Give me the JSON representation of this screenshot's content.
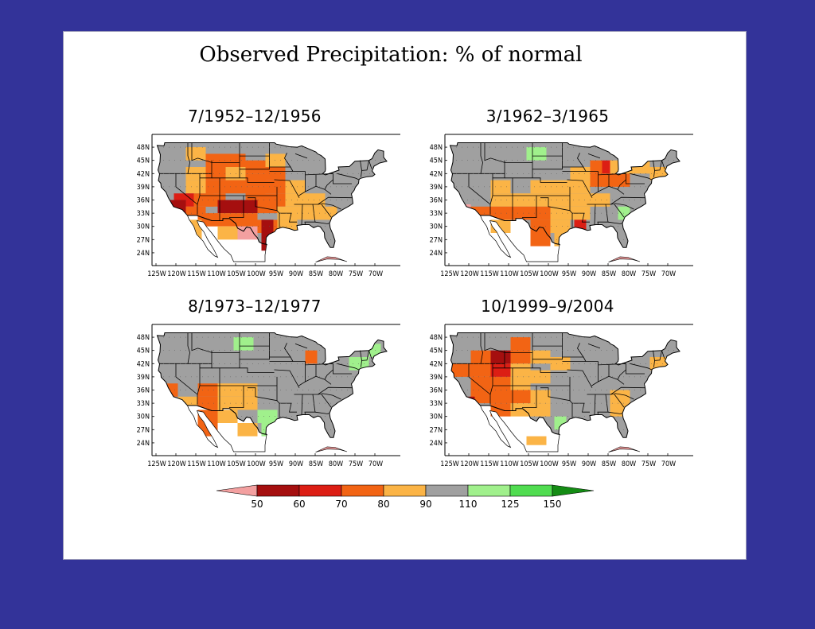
{
  "title": "Observed Precipitation: % of normal",
  "colors": {
    "background": "#333399",
    "land_gray": "#a0a0a0",
    "lt50": "#f3a0a0",
    "c50_60": "#a50f0f",
    "c60_70": "#dc1e14",
    "c70_80": "#f26414",
    "c80_90": "#fbb446",
    "c90_110": "#a0a0a0",
    "c110_125": "#a0f08c",
    "c125_150": "#50dc50",
    "gt150": "#148c14"
  },
  "lat_labels": [
    "48N",
    "45N",
    "42N",
    "39N",
    "36N",
    "33N",
    "30N",
    "27N",
    "24N"
  ],
  "lon_labels": [
    "125W",
    "120W",
    "115W",
    "110W",
    "105W",
    "100W",
    "95W",
    "90W",
    "85W",
    "80W",
    "75W",
    "70W"
  ],
  "panels": [
    {
      "title": "7/1952–12/1956",
      "cells": [
        {
          "lat": 46.5,
          "lon": -115,
          "w": 5,
          "h": 3,
          "c": "c80_90"
        },
        {
          "lat": 45,
          "lon": -110,
          "w": 5,
          "h": 3,
          "c": "c70_80"
        },
        {
          "lat": 45,
          "lon": -105,
          "w": 5,
          "h": 3,
          "c": "c70_80"
        },
        {
          "lat": 43.5,
          "lon": -100,
          "w": 5,
          "h": 3,
          "c": "c70_80"
        },
        {
          "lat": 45,
          "lon": -95,
          "w": 5,
          "h": 3,
          "c": "c80_90"
        },
        {
          "lat": 42,
          "lon": -115,
          "w": 5,
          "h": 3,
          "c": "c80_90"
        },
        {
          "lat": 42,
          "lon": -110,
          "w": 5,
          "h": 3,
          "c": "c70_80"
        },
        {
          "lat": 42,
          "lon": -105,
          "w": 5,
          "h": 3,
          "c": "c80_90"
        },
        {
          "lat": 42,
          "lon": -95,
          "w": 5,
          "h": 3,
          "c": "c70_80"
        },
        {
          "lat": 40.5,
          "lon": -100,
          "w": 5,
          "h": 3,
          "c": "c70_80"
        },
        {
          "lat": 39,
          "lon": -115,
          "w": 5,
          "h": 3,
          "c": "c80_90"
        },
        {
          "lat": 39,
          "lon": -110,
          "w": 5,
          "h": 3,
          "c": "c70_80"
        },
        {
          "lat": 39,
          "lon": -105,
          "w": 5,
          "h": 3,
          "c": "c70_80"
        },
        {
          "lat": 39,
          "lon": -95,
          "w": 5,
          "h": 3,
          "c": "c70_80"
        },
        {
          "lat": 39,
          "lon": -90,
          "w": 5,
          "h": 3,
          "c": "c80_90"
        },
        {
          "lat": 37.5,
          "lon": -100,
          "w": 5,
          "h": 3,
          "c": "c70_80"
        },
        {
          "lat": 36,
          "lon": -118,
          "w": 5,
          "h": 3,
          "c": "c60_70"
        },
        {
          "lat": 36,
          "lon": -113,
          "w": 5,
          "h": 3,
          "c": "c70_80"
        },
        {
          "lat": 36,
          "lon": -110,
          "w": 5,
          "h": 3,
          "c": "c70_80"
        },
        {
          "lat": 36,
          "lon": -95,
          "w": 5,
          "h": 3,
          "c": "c70_80"
        },
        {
          "lat": 36,
          "lon": -90,
          "w": 5,
          "h": 3,
          "c": "c80_90"
        },
        {
          "lat": 36,
          "lon": -85,
          "w": 5,
          "h": 3,
          "c": "c80_90"
        },
        {
          "lat": 34.5,
          "lon": -120,
          "w": 5,
          "h": 3,
          "c": "c50_60"
        },
        {
          "lat": 34.5,
          "lon": -107,
          "w": 5,
          "h": 3,
          "c": "c50_60"
        },
        {
          "lat": 34.5,
          "lon": -102,
          "w": 5,
          "h": 3,
          "c": "c50_60"
        },
        {
          "lat": 34.5,
          "lon": -97,
          "w": 5,
          "h": 3,
          "c": "c70_80"
        },
        {
          "lat": 33,
          "lon": -115,
          "w": 5,
          "h": 3,
          "c": "c70_80"
        },
        {
          "lat": 33,
          "lon": -92,
          "w": 5,
          "h": 3,
          "c": "c80_90"
        },
        {
          "lat": 33,
          "lon": -87,
          "w": 5,
          "h": 3,
          "c": "c80_90"
        },
        {
          "lat": 33,
          "lon": -82,
          "w": 5,
          "h": 3,
          "c": "c80_90"
        },
        {
          "lat": 31.5,
          "lon": -112,
          "w": 5,
          "h": 3,
          "c": "c70_80"
        },
        {
          "lat": 31.5,
          "lon": -107,
          "w": 5,
          "h": 3,
          "c": "c70_80"
        },
        {
          "lat": 31.5,
          "lon": -102,
          "w": 5,
          "h": 3,
          "c": "c70_80"
        },
        {
          "lat": 30,
          "lon": -97,
          "w": 5,
          "h": 3,
          "c": "c70_80"
        },
        {
          "lat": 30,
          "lon": -92,
          "w": 5,
          "h": 3,
          "c": "c80_90"
        },
        {
          "lat": 28.5,
          "lon": -107,
          "w": 5,
          "h": 3,
          "c": "c80_90"
        },
        {
          "lat": 28.5,
          "lon": -102,
          "w": 5,
          "h": 3,
          "c": "lt50"
        },
        {
          "lat": 28.5,
          "lon": -97,
          "w": 3,
          "h": 6,
          "c": "c50_60"
        },
        {
          "lat": 28.5,
          "lon": -115,
          "w": 3,
          "h": 6,
          "c": "c80_90"
        },
        {
          "lat": 26,
          "lon": -97,
          "w": 3,
          "h": 3,
          "c": "c50_60"
        }
      ]
    },
    {
      "title": "3/1962–3/1965",
      "cells": [
        {
          "lat": 46.5,
          "lon": -103,
          "w": 5,
          "h": 3,
          "c": "c110_125"
        },
        {
          "lat": 43.5,
          "lon": -85,
          "w": 3,
          "h": 3,
          "c": "c60_70"
        },
        {
          "lat": 43.5,
          "lon": -88,
          "w": 3,
          "h": 3,
          "c": "c70_80"
        },
        {
          "lat": 43.5,
          "lon": -82,
          "w": 5,
          "h": 3,
          "c": "c80_90"
        },
        {
          "lat": 43.5,
          "lon": -77,
          "w": 5,
          "h": 3,
          "c": "c80_90"
        },
        {
          "lat": 42,
          "lon": -92,
          "w": 5,
          "h": 3,
          "c": "c80_90"
        },
        {
          "lat": 42,
          "lon": -72,
          "w": 5,
          "h": 3,
          "c": "c80_90"
        },
        {
          "lat": 40.5,
          "lon": -87,
          "w": 5,
          "h": 3,
          "c": "c70_80"
        },
        {
          "lat": 40.5,
          "lon": -82,
          "w": 5,
          "h": 3,
          "c": "c70_80"
        },
        {
          "lat": 39,
          "lon": -112,
          "w": 5,
          "h": 3,
          "c": "c80_90"
        },
        {
          "lat": 39,
          "lon": -102,
          "w": 5,
          "h": 3,
          "c": "c80_90"
        },
        {
          "lat": 39,
          "lon": -97,
          "w": 5,
          "h": 3,
          "c": "c80_90"
        },
        {
          "lat": 39,
          "lon": -92,
          "w": 5,
          "h": 3,
          "c": "c80_90"
        },
        {
          "lat": 36,
          "lon": -112,
          "w": 5,
          "h": 3,
          "c": "c80_90"
        },
        {
          "lat": 36,
          "lon": -107,
          "w": 5,
          "h": 3,
          "c": "c80_90"
        },
        {
          "lat": 36,
          "lon": -102,
          "w": 5,
          "h": 3,
          "c": "c80_90"
        },
        {
          "lat": 36,
          "lon": -97,
          "w": 5,
          "h": 3,
          "c": "c80_90"
        },
        {
          "lat": 36,
          "lon": -92,
          "w": 5,
          "h": 3,
          "c": "c80_90"
        },
        {
          "lat": 36,
          "lon": -87,
          "w": 5,
          "h": 3,
          "c": "c80_90"
        },
        {
          "lat": 33,
          "lon": -117,
          "w": 5,
          "h": 3,
          "c": "c70_80"
        },
        {
          "lat": 33,
          "lon": -112,
          "w": 5,
          "h": 3,
          "c": "c70_80"
        },
        {
          "lat": 33,
          "lon": -107,
          "w": 5,
          "h": 3,
          "c": "c70_80"
        },
        {
          "lat": 33,
          "lon": -102,
          "w": 5,
          "h": 3,
          "c": "c70_80"
        },
        {
          "lat": 33,
          "lon": -97,
          "w": 5,
          "h": 3,
          "c": "c80_90"
        },
        {
          "lat": 33,
          "lon": -92,
          "w": 5,
          "h": 3,
          "c": "c80_90"
        },
        {
          "lat": 33,
          "lon": -81,
          "w": 3,
          "h": 3,
          "c": "c110_125"
        },
        {
          "lat": 33.5,
          "lon": -121,
          "w": 3,
          "h": 3,
          "c": "lt50"
        },
        {
          "lat": 30,
          "lon": -112,
          "w": 5,
          "h": 3,
          "c": "c80_90"
        },
        {
          "lat": 30,
          "lon": -102,
          "w": 5,
          "h": 3,
          "c": "c70_80"
        },
        {
          "lat": 30,
          "lon": -97,
          "w": 5,
          "h": 3,
          "c": "c80_90"
        },
        {
          "lat": 30,
          "lon": -92,
          "w": 3,
          "h": 3,
          "c": "c60_70"
        },
        {
          "lat": 27,
          "lon": -102,
          "w": 5,
          "h": 3,
          "c": "c70_80"
        },
        {
          "lat": 27,
          "lon": -97,
          "w": 3,
          "h": 3,
          "c": "c80_90"
        }
      ]
    },
    {
      "title": "8/1973–12/1977",
      "cells": [
        {
          "lat": 46.5,
          "lon": -103,
          "w": 5,
          "h": 3,
          "c": "c110_125"
        },
        {
          "lat": 42,
          "lon": -74,
          "w": 5,
          "h": 3,
          "c": "c110_125"
        },
        {
          "lat": 45,
          "lon": -70,
          "w": 3,
          "h": 3,
          "c": "c110_125"
        },
        {
          "lat": 43.5,
          "lon": -86,
          "w": 3,
          "h": 3,
          "c": "c70_80"
        },
        {
          "lat": 36,
          "lon": -122,
          "w": 5,
          "h": 3,
          "c": "c70_80"
        },
        {
          "lat": 36,
          "lon": -112,
          "w": 5,
          "h": 3,
          "c": "c70_80"
        },
        {
          "lat": 36,
          "lon": -107,
          "w": 5,
          "h": 3,
          "c": "c80_90"
        },
        {
          "lat": 36,
          "lon": -102,
          "w": 5,
          "h": 3,
          "c": "c80_90"
        },
        {
          "lat": 33,
          "lon": -117,
          "w": 5,
          "h": 3,
          "c": "c80_90"
        },
        {
          "lat": 33,
          "lon": -112,
          "w": 5,
          "h": 3,
          "c": "c70_80"
        },
        {
          "lat": 33,
          "lon": -107,
          "w": 5,
          "h": 3,
          "c": "c80_90"
        },
        {
          "lat": 33,
          "lon": -102,
          "w": 5,
          "h": 3,
          "c": "c80_90"
        },
        {
          "lat": 30,
          "lon": -112,
          "w": 5,
          "h": 3,
          "c": "c70_80"
        },
        {
          "lat": 30,
          "lon": -107,
          "w": 5,
          "h": 3,
          "c": "c80_90"
        },
        {
          "lat": 30,
          "lon": -97,
          "w": 5,
          "h": 3,
          "c": "c110_125"
        },
        {
          "lat": 27,
          "lon": -112,
          "w": 5,
          "h": 3,
          "c": "c70_80"
        },
        {
          "lat": 27,
          "lon": -102,
          "w": 5,
          "h": 3,
          "c": "c80_90"
        },
        {
          "lat": 27,
          "lon": -97,
          "w": 3,
          "h": 3,
          "c": "c110_125"
        }
      ]
    },
    {
      "title": "10/1999–9/2004",
      "cells": [
        {
          "lat": 46.5,
          "lon": -107,
          "w": 5,
          "h": 3,
          "c": "c70_80"
        },
        {
          "lat": 43.5,
          "lon": -117,
          "w": 5,
          "h": 3,
          "c": "c70_80"
        },
        {
          "lat": 43.5,
          "lon": -112,
          "w": 5,
          "h": 3,
          "c": "c50_60"
        },
        {
          "lat": 43.5,
          "lon": -107,
          "w": 5,
          "h": 3,
          "c": "c70_80"
        },
        {
          "lat": 43.5,
          "lon": -102,
          "w": 5,
          "h": 3,
          "c": "c80_90"
        },
        {
          "lat": 42,
          "lon": -97,
          "w": 5,
          "h": 3,
          "c": "c80_90"
        },
        {
          "lat": 40.5,
          "lon": -122,
          "w": 5,
          "h": 3,
          "c": "c70_80"
        },
        {
          "lat": 40.5,
          "lon": -117,
          "w": 5,
          "h": 3,
          "c": "c70_80"
        },
        {
          "lat": 40.5,
          "lon": -112,
          "w": 5,
          "h": 3,
          "c": "c60_70"
        },
        {
          "lat": 40.5,
          "lon": -107,
          "w": 5,
          "h": 3,
          "c": "c80_90"
        },
        {
          "lat": 39,
          "lon": -102,
          "w": 5,
          "h": 3,
          "c": "c80_90"
        },
        {
          "lat": 37.5,
          "lon": -117,
          "w": 5,
          "h": 3,
          "c": "c70_80"
        },
        {
          "lat": 37.5,
          "lon": -112,
          "w": 5,
          "h": 3,
          "c": "c70_80"
        },
        {
          "lat": 37.5,
          "lon": -107,
          "w": 5,
          "h": 3,
          "c": "c80_90"
        },
        {
          "lat": 34.5,
          "lon": -117,
          "w": 5,
          "h": 3,
          "c": "c70_80"
        },
        {
          "lat": 34.5,
          "lon": -112,
          "w": 5,
          "h": 3,
          "c": "c70_80"
        },
        {
          "lat": 34.5,
          "lon": -107,
          "w": 5,
          "h": 3,
          "c": "c70_80"
        },
        {
          "lat": 34.5,
          "lon": -102,
          "w": 5,
          "h": 3,
          "c": "c80_90"
        },
        {
          "lat": 33,
          "lon": -120,
          "w": 3,
          "h": 3,
          "c": "c50_60"
        },
        {
          "lat": 31.5,
          "lon": -112,
          "w": 5,
          "h": 3,
          "c": "c70_80"
        },
        {
          "lat": 31.5,
          "lon": -107,
          "w": 5,
          "h": 3,
          "c": "c80_90"
        },
        {
          "lat": 31.5,
          "lon": -102,
          "w": 5,
          "h": 3,
          "c": "c80_90"
        },
        {
          "lat": 34.5,
          "lon": -82,
          "w": 5,
          "h": 3,
          "c": "c80_90"
        },
        {
          "lat": 31.5,
          "lon": -82,
          "w": 5,
          "h": 3,
          "c": "c80_90"
        },
        {
          "lat": 28.5,
          "lon": -97,
          "w": 3,
          "h": 3,
          "c": "c110_125"
        },
        {
          "lat": 24.5,
          "lon": -103,
          "w": 5,
          "h": 2,
          "c": "c80_90"
        },
        {
          "lat": 42,
          "lon": -72,
          "w": 5,
          "h": 3,
          "c": "c80_90"
        }
      ]
    }
  ],
  "legend": {
    "labels": [
      "50",
      "60",
      "70",
      "80",
      "90",
      "110",
      "125",
      "150"
    ],
    "colors": [
      "lt50",
      "c50_60",
      "c60_70",
      "c70_80",
      "c80_90",
      "c90_110",
      "c110_125",
      "c125_150",
      "gt150"
    ]
  }
}
